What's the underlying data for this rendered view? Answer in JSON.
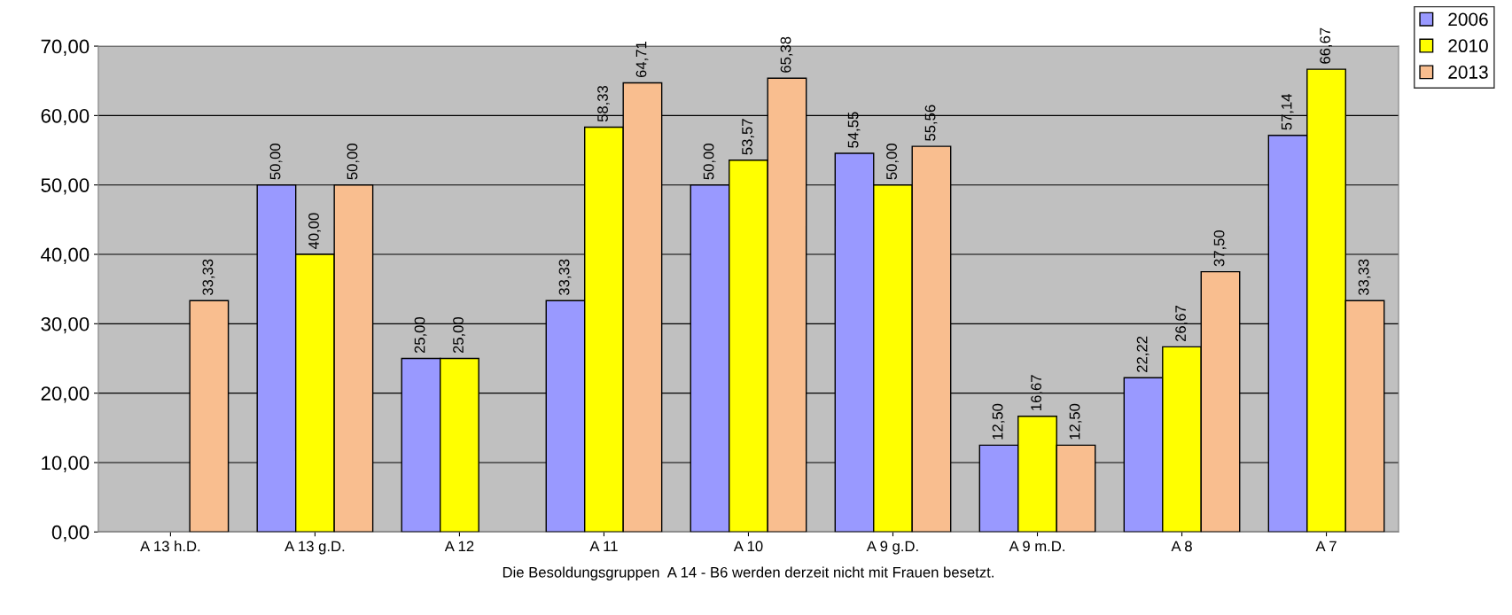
{
  "chart_data": {
    "type": "bar",
    "categories": [
      "A 13 h.D.",
      "A 13 g.D.",
      "A 12",
      "A 11",
      "A 10",
      "A 9 g.D.",
      "A 9 m.D.",
      "A 8",
      "A 7"
    ],
    "series": [
      {
        "name": "2006",
        "color": "#9999ff",
        "values": [
          null,
          50.0,
          25.0,
          33.33,
          50.0,
          54.55,
          12.5,
          22.22,
          57.14
        ],
        "value_labels": [
          null,
          "50,00",
          "25,00",
          "33,33",
          "50,00",
          "54,55",
          "12,50",
          "22,22",
          "57,14"
        ]
      },
      {
        "name": "2010",
        "color": "#ffff00",
        "values": [
          null,
          40.0,
          25.0,
          58.33,
          53.57,
          50.0,
          16.67,
          26.67,
          66.67
        ],
        "value_labels": [
          null,
          "40,00",
          "25,00",
          "58,33",
          "53,57",
          "50,00",
          "16,67",
          "26,67",
          "66,67"
        ]
      },
      {
        "name": "2013",
        "color": "#f9be8f",
        "values": [
          33.33,
          50.0,
          null,
          64.71,
          65.38,
          55.56,
          12.5,
          37.5,
          33.33
        ],
        "value_labels": [
          "33,33",
          "50,00",
          null,
          "64,71",
          "65,38",
          "55,56",
          "12,50",
          "37,50",
          "33,33"
        ]
      }
    ],
    "xlabel": "Die Besoldungsgruppen  A 14 - B6 werden derzeit nicht mit Frauen besetzt.",
    "ylim": [
      0,
      70
    ],
    "yticks": [
      {
        "value": 0,
        "label": "0,00"
      },
      {
        "value": 10,
        "label": "10,00"
      },
      {
        "value": 20,
        "label": "20,00"
      },
      {
        "value": 30,
        "label": "30,00"
      },
      {
        "value": 40,
        "label": "40,00"
      },
      {
        "value": 50,
        "label": "50,00"
      },
      {
        "value": 60,
        "label": "60,00"
      },
      {
        "value": 70,
        "label": "70,00"
      }
    ],
    "grid": "y",
    "legend": "top right"
  }
}
